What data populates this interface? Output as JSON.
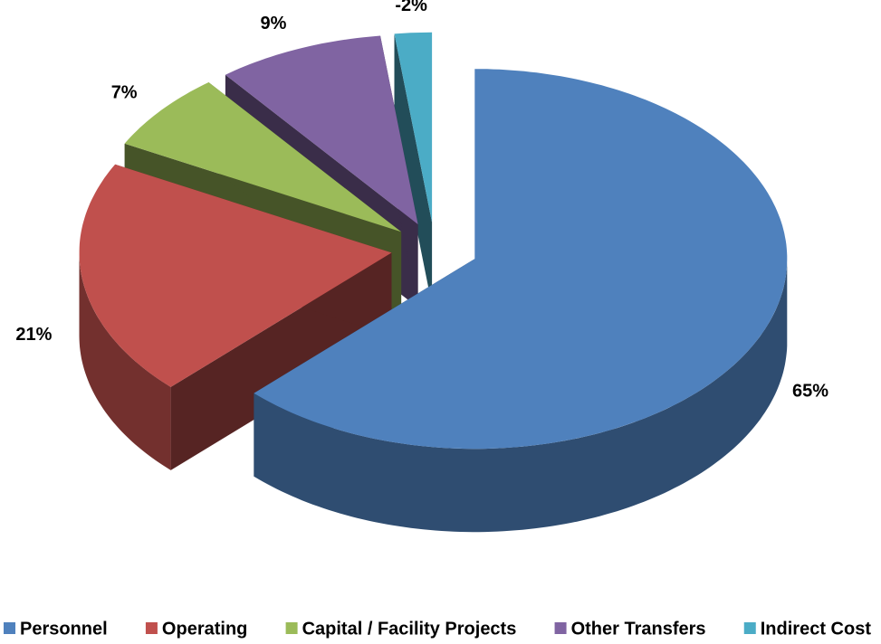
{
  "chart_data": {
    "type": "pie",
    "categories": [
      "Personnel",
      "Operating",
      "Capital / Facility Projects",
      "Other Transfers",
      "Indirect Cost"
    ],
    "values": [
      65,
      21,
      7,
      9,
      -2
    ],
    "value_labels": [
      "65%",
      "21%",
      "7%",
      "9%",
      "-2%"
    ],
    "colors": [
      "#4f81bd",
      "#c0504d",
      "#9bbb59",
      "#8064a2",
      "#4bacc6"
    ],
    "legend": "bottom"
  }
}
